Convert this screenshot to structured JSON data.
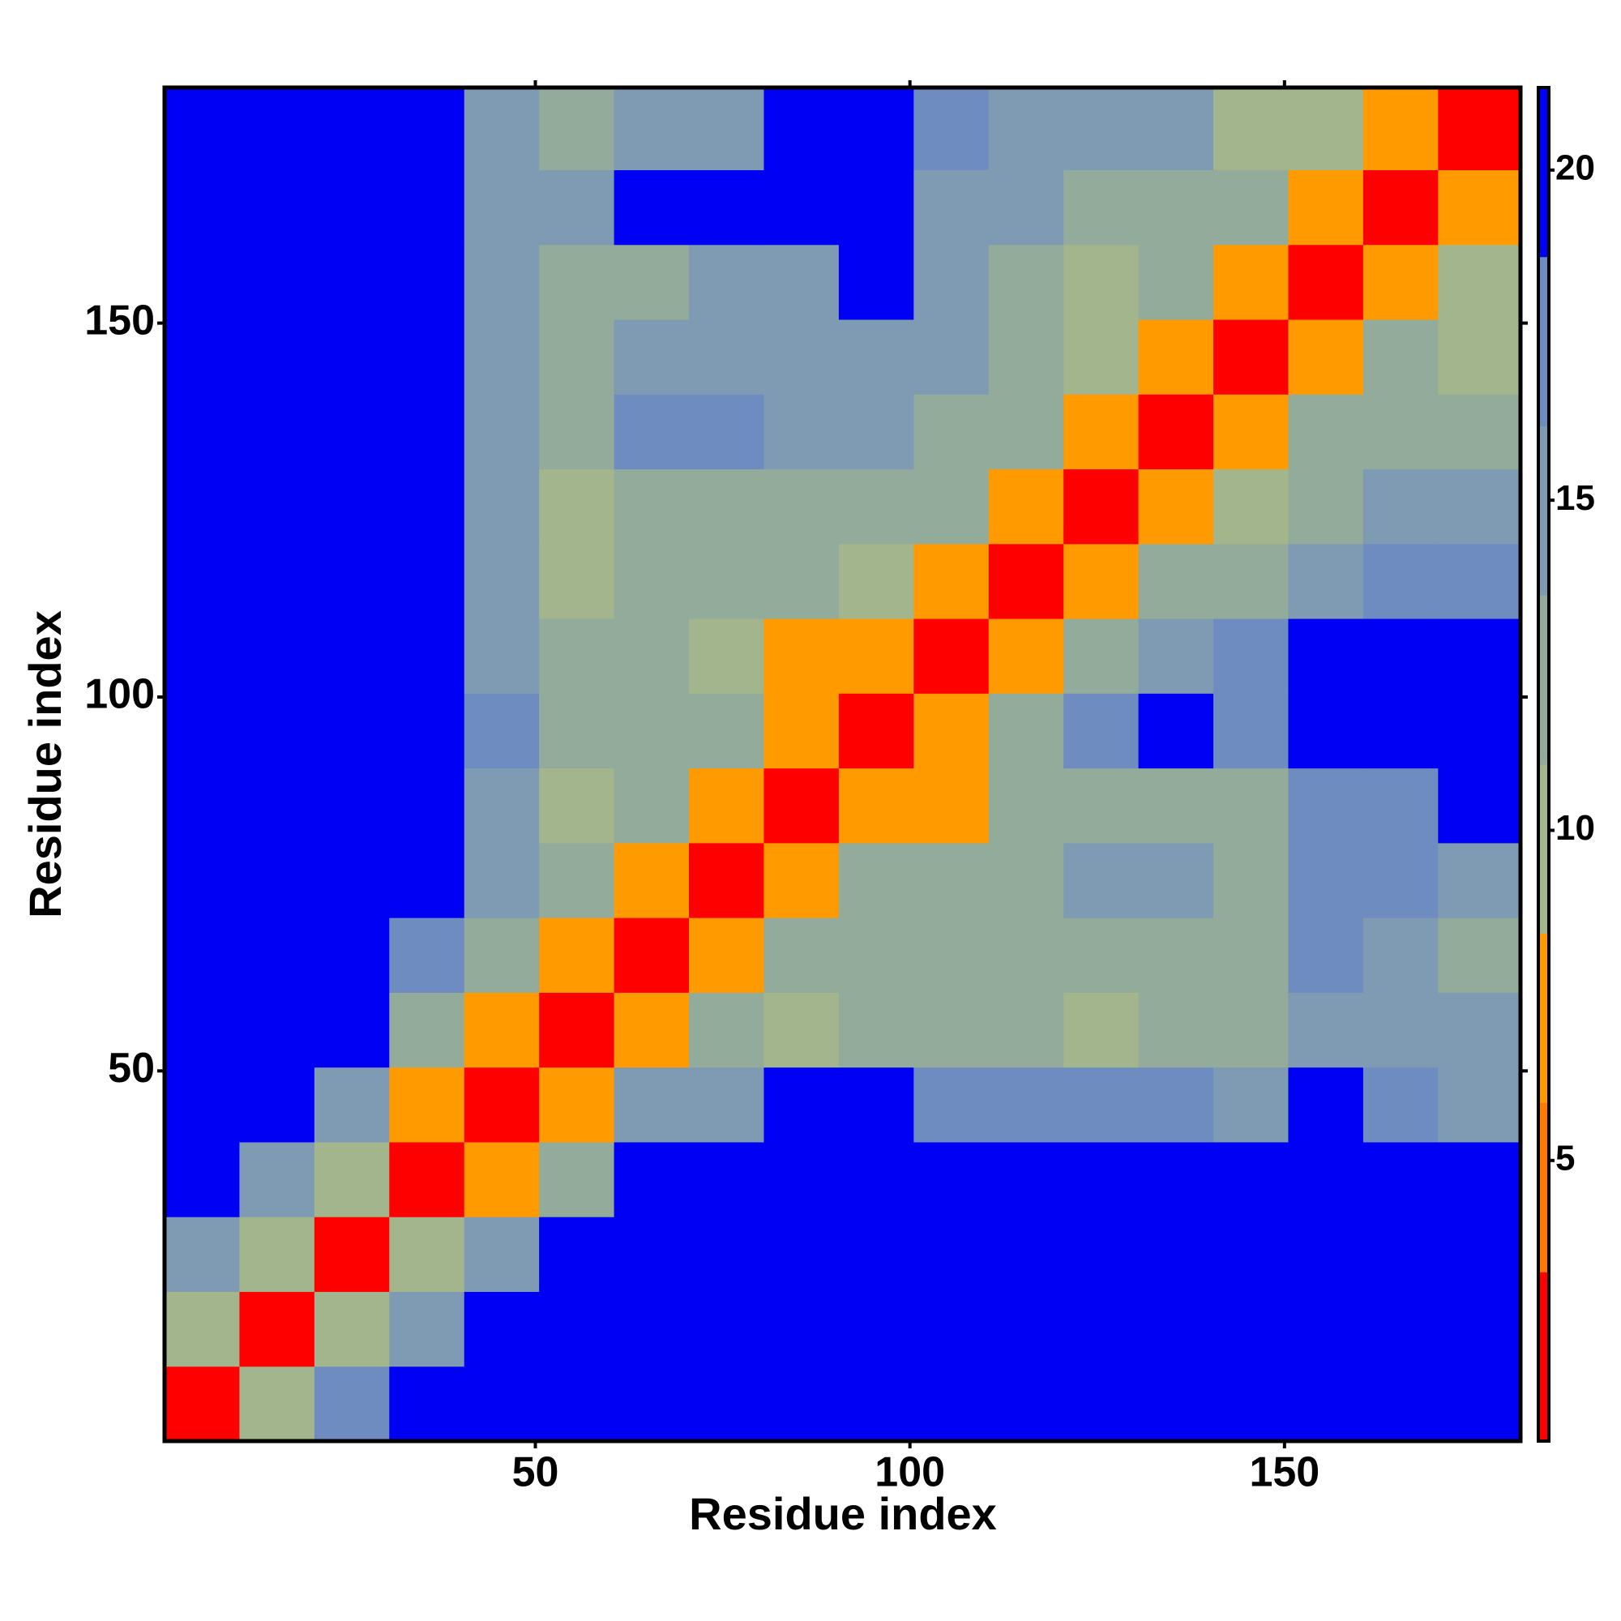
{
  "chart_data": {
    "type": "heatmap",
    "x_label": "Residue index",
    "y_label": "Residue index",
    "bins": [
      0.5,
      10.5,
      20.5,
      30.5,
      40.5,
      50.5,
      60.5,
      70.5,
      80.5,
      90.5,
      100.5,
      110.5,
      120.5,
      130.5,
      140.5,
      150.5,
      160.5,
      170.5,
      181.5
    ],
    "values": [
      [
        3,
        9,
        17,
        21,
        21,
        21,
        21,
        21,
        21,
        21,
        21,
        21,
        21,
        21,
        21,
        21,
        21,
        21
      ],
      [
        9,
        3,
        9,
        16,
        21,
        21,
        21,
        21,
        21,
        21,
        21,
        21,
        21,
        21,
        21,
        21,
        21,
        21
      ],
      [
        16,
        9,
        3,
        9,
        15,
        21,
        21,
        21,
        21,
        21,
        21,
        21,
        21,
        21,
        21,
        21,
        21,
        21
      ],
      [
        21,
        15,
        9,
        3,
        8,
        13,
        21,
        21,
        21,
        21,
        21,
        21,
        21,
        21,
        21,
        21,
        21,
        21
      ],
      [
        21,
        21,
        14,
        8,
        3,
        8,
        14,
        15,
        19,
        19,
        18,
        17,
        18,
        17,
        14,
        19,
        18,
        15
      ],
      [
        21,
        21,
        21,
        13,
        8,
        3,
        8,
        11,
        9,
        12,
        12,
        11,
        9,
        12,
        12,
        16,
        15,
        14
      ],
      [
        21,
        21,
        21,
        17,
        12,
        8,
        3,
        8,
        12,
        12,
        12,
        11,
        13,
        12,
        12,
        18,
        16,
        13
      ],
      [
        21,
        21,
        21,
        21,
        14,
        11,
        8,
        3,
        8,
        11,
        11,
        13,
        16,
        15,
        13,
        18,
        18,
        14
      ],
      [
        21,
        21,
        21,
        21,
        15,
        9,
        11,
        8,
        3,
        8,
        8,
        11,
        12,
        12,
        12,
        17,
        17,
        19
      ],
      [
        21,
        21,
        21,
        21,
        17,
        12,
        12,
        11,
        8,
        3,
        6,
        11,
        17,
        19,
        18,
        21,
        21,
        21
      ],
      [
        21,
        21,
        21,
        21,
        16,
        12,
        11,
        10,
        8,
        6,
        3,
        8,
        12,
        14,
        18,
        20,
        21,
        21
      ],
      [
        21,
        21,
        21,
        21,
        15,
        10,
        11,
        11,
        11,
        10,
        8,
        3,
        8,
        11,
        11,
        16,
        17,
        18
      ],
      [
        21,
        21,
        21,
        21,
        14,
        9,
        12,
        13,
        13,
        13,
        11,
        8,
        3,
        8,
        9,
        12,
        14,
        14
      ],
      [
        21,
        21,
        21,
        21,
        15,
        12,
        18,
        18,
        16,
        16,
        12,
        11,
        8,
        3,
        8,
        11,
        12,
        12
      ],
      [
        21,
        21,
        21,
        21,
        16,
        11,
        15,
        14,
        15,
        16,
        14,
        12,
        10,
        8,
        3,
        8,
        11,
        9
      ],
      [
        21,
        21,
        21,
        21,
        15,
        11,
        13,
        14,
        16,
        19,
        14,
        13,
        9,
        11,
        8,
        3,
        8,
        10
      ],
      [
        21,
        21,
        21,
        21,
        16,
        14,
        19,
        19,
        19,
        20,
        16,
        15,
        13,
        12,
        11,
        8,
        3,
        8
      ],
      [
        21,
        21,
        21,
        21,
        15,
        13,
        15,
        14,
        19,
        20,
        18,
        15,
        14,
        14,
        9,
        9,
        8,
        3
      ]
    ],
    "xlim": [
      0.5,
      181.5
    ],
    "ylim": [
      0.5,
      181.5
    ],
    "xticks": [
      50,
      100,
      150
    ],
    "yticks": [
      50,
      100,
      150
    ],
    "colors": [
      "#ff0000",
      "#ff7a00",
      "#ff9a00",
      "#a3b58c",
      "#93ab9a",
      "#7f9bb3",
      "#6f8cc0",
      "#0000f5"
    ],
    "zlim": [
      0.75,
      21.25
    ],
    "zticks": [
      5,
      10,
      15,
      20
    ]
  }
}
